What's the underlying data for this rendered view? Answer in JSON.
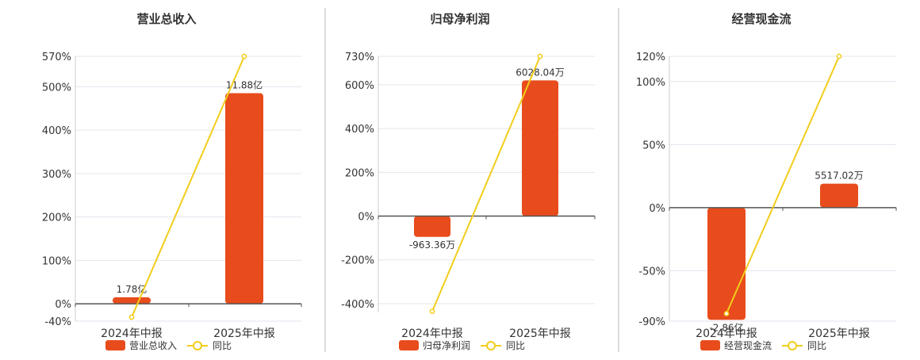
{
  "colors": {
    "bar": "#e84c1c",
    "line": "#f2cd1b",
    "grid": "#e3e6ef",
    "axis": "#555555",
    "text": "#333333",
    "divider": "#b8b8b8"
  },
  "chart_data": [
    {
      "type": "bar",
      "title": "营业总收入",
      "categories": [
        "2024年中报",
        "2025年中报"
      ],
      "ylim": [
        -40,
        570
      ],
      "y_ticks": [
        -40,
        0,
        100,
        200,
        300,
        400,
        500,
        570
      ],
      "y_tick_labels": [
        "-40%",
        "0%",
        "100%",
        "200%",
        "300%",
        "400%",
        "500%",
        "570%"
      ],
      "bar_values_pct": [
        15,
        485
      ],
      "line_values_pct": [
        -31,
        570
      ],
      "bar_labels": [
        "1.78亿",
        "11.88亿"
      ],
      "legend": [
        "营业总收入",
        "同比"
      ]
    },
    {
      "type": "bar",
      "title": "归母净利润",
      "categories": [
        "2024年中报",
        "2025年中报"
      ],
      "ylim": [
        -440,
        730
      ],
      "y_ticks": [
        -400,
        -200,
        0,
        200,
        400,
        600,
        730
      ],
      "y_tick_labels": [
        "-400%",
        "-200%",
        "0%",
        "200%",
        "400%",
        "600%",
        "730%"
      ],
      "bar_values_pct": [
        -95,
        620
      ],
      "line_values_pct": [
        -435,
        730
      ],
      "bar_labels": [
        "-963.36万",
        "6028.04万"
      ],
      "legend": [
        "归母净利润",
        "同比"
      ]
    },
    {
      "type": "bar",
      "title": "经营现金流",
      "categories": [
        "2024年中报",
        "2025年中报"
      ],
      "ylim": [
        -90,
        120
      ],
      "y_ticks": [
        -90,
        -50,
        0,
        50,
        100,
        120
      ],
      "y_tick_labels": [
        "-90%",
        "-50%",
        "0%",
        "50%",
        "100%",
        "120%"
      ],
      "bar_values_pct": [
        -89,
        19
      ],
      "line_values_pct": [
        -84,
        120
      ],
      "bar_labels": [
        "-2.86亿",
        "5517.02万"
      ],
      "legend": [
        "经营现金流",
        "同比"
      ]
    }
  ]
}
